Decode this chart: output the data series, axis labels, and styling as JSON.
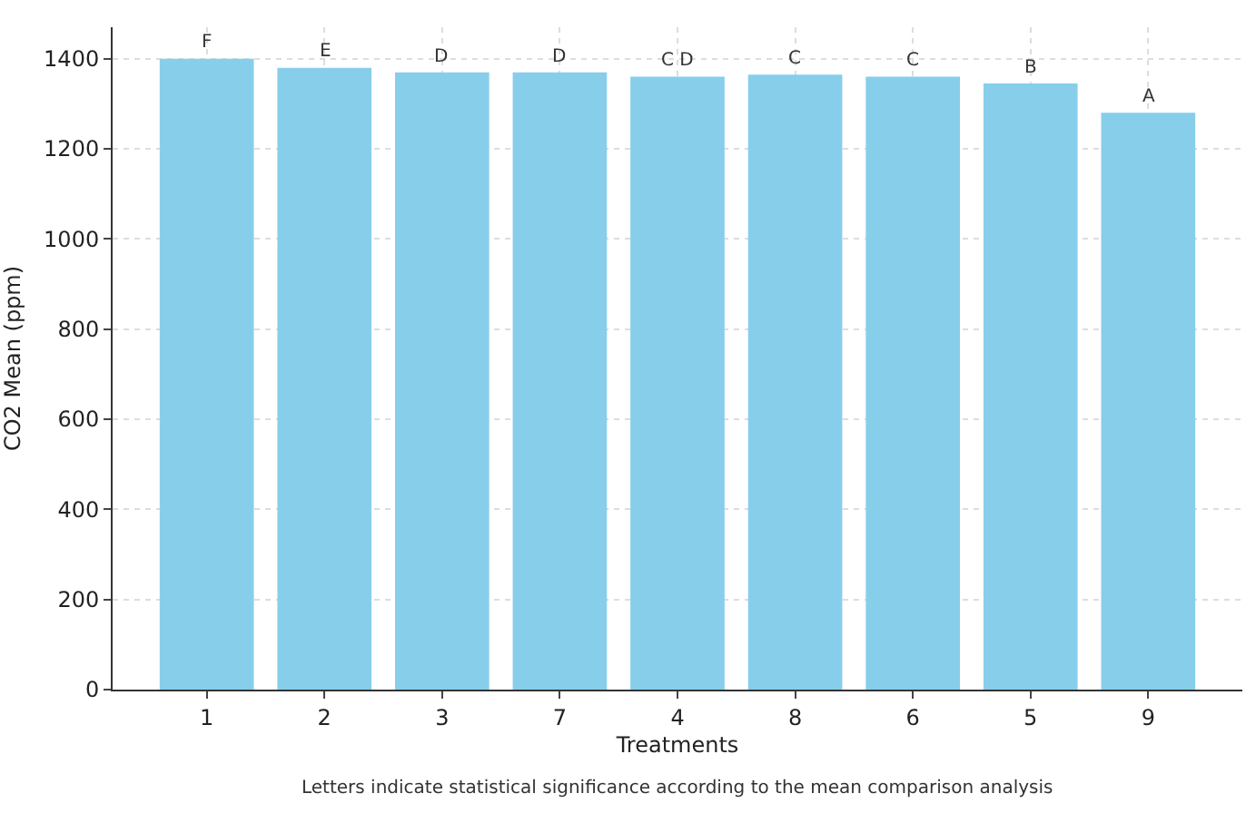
{
  "chart_data": {
    "type": "bar",
    "xlabel": "Treatments",
    "ylabel": "CO2 Mean (ppm)",
    "categories": [
      "1",
      "2",
      "3",
      "7",
      "4",
      "8",
      "6",
      "5",
      "9"
    ],
    "values": [
      1400,
      1380,
      1370,
      1370,
      1360,
      1365,
      1360,
      1345,
      1280
    ],
    "color": "#87ceeb",
    "ylim": [
      0,
      1470
    ],
    "yticks": [
      0,
      200,
      400,
      600,
      800,
      1000,
      1200,
      1400
    ],
    "grid": true,
    "annotations": [
      {
        "text": "F",
        "x": "1",
        "y": 1400
      },
      {
        "text": "E",
        "x": "2",
        "y": 1380
      },
      {
        "text": "D",
        "x": "3",
        "y": 1370
      },
      {
        "text": "D",
        "x": "7",
        "y": 1370
      },
      {
        "text": "C D",
        "x": "4",
        "y": 1360
      },
      {
        "text": "C",
        "x": "8",
        "y": 1365
      },
      {
        "text": "C",
        "x": "6",
        "y": 1360
      },
      {
        "text": "B",
        "x": "5",
        "y": 1345
      },
      {
        "text": "A",
        "x": "9",
        "y": 1280
      },
      "Letters indicate statistical significance according to the mean comparison analysis"
    ]
  }
}
